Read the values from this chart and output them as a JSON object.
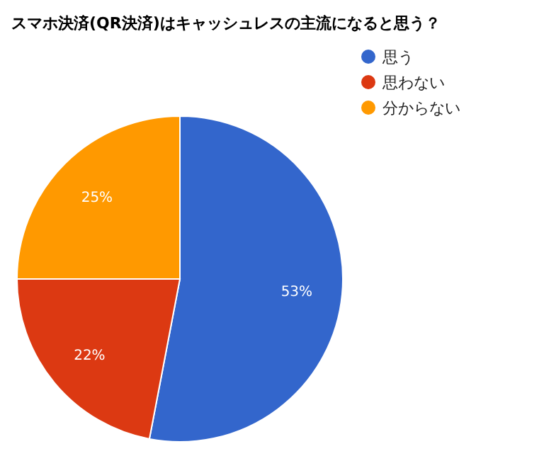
{
  "chart_data": {
    "type": "pie",
    "title": "スマホ決済(QR決済)はキャッシュレスの主流になると思う？",
    "categories": [
      "思う",
      "思わない",
      "分からない"
    ],
    "values": [
      53,
      22,
      25
    ],
    "colors": [
      "#3366cc",
      "#dc3912",
      "#ff9900"
    ],
    "value_labels": [
      "53%",
      "22%",
      "25%"
    ],
    "legend": "top right"
  }
}
